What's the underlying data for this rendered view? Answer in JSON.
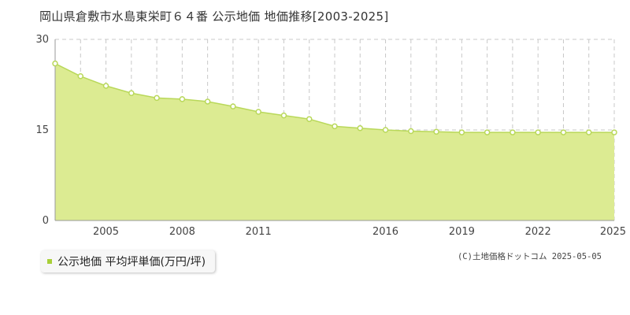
{
  "title": "岡山県倉敷市水島東栄町６４番 公示地価 地価推移[2003-2025]",
  "legend": {
    "label": "公示地価 平均坪単価(万円/坪)"
  },
  "copyright": "(C)土地価格ドットコム 2025-05-05",
  "colors": {
    "area_fill": "#dceb92",
    "line": "#b9d85a",
    "point_fill": "#ffffff",
    "grid": "#c8c8c8",
    "legend_swatch": "#a8cf38"
  },
  "chart_data": {
    "type": "area",
    "title": "岡山県倉敷市水島東栄町６４番 公示地価 地価推移[2003-2025]",
    "series": [
      {
        "name": "公示地価 平均坪単価(万円/坪)",
        "x": [
          2003,
          2004,
          2005,
          2006,
          2007,
          2008,
          2009,
          2010,
          2011,
          2012,
          2013,
          2014,
          2015,
          2016,
          2017,
          2018,
          2019,
          2020,
          2021,
          2022,
          2023,
          2024,
          2025
        ],
        "values": [
          26.0,
          23.9,
          22.3,
          21.1,
          20.3,
          20.1,
          19.7,
          18.9,
          18.0,
          17.4,
          16.8,
          15.6,
          15.3,
          15.0,
          14.8,
          14.7,
          14.6,
          14.6,
          14.6,
          14.6,
          14.6,
          14.6,
          14.6
        ]
      }
    ],
    "xlim": [
      2003,
      2025
    ],
    "ylim": [
      0,
      30
    ],
    "y_ticks": [
      "0",
      "15",
      "30"
    ],
    "x_ticks": [
      "2005",
      "2008",
      "2011",
      "2016",
      "2019",
      "2022",
      "2025"
    ],
    "x_tick_values": [
      2005,
      2008,
      2011,
      2016,
      2019,
      2022,
      2025
    ],
    "grid": true
  }
}
